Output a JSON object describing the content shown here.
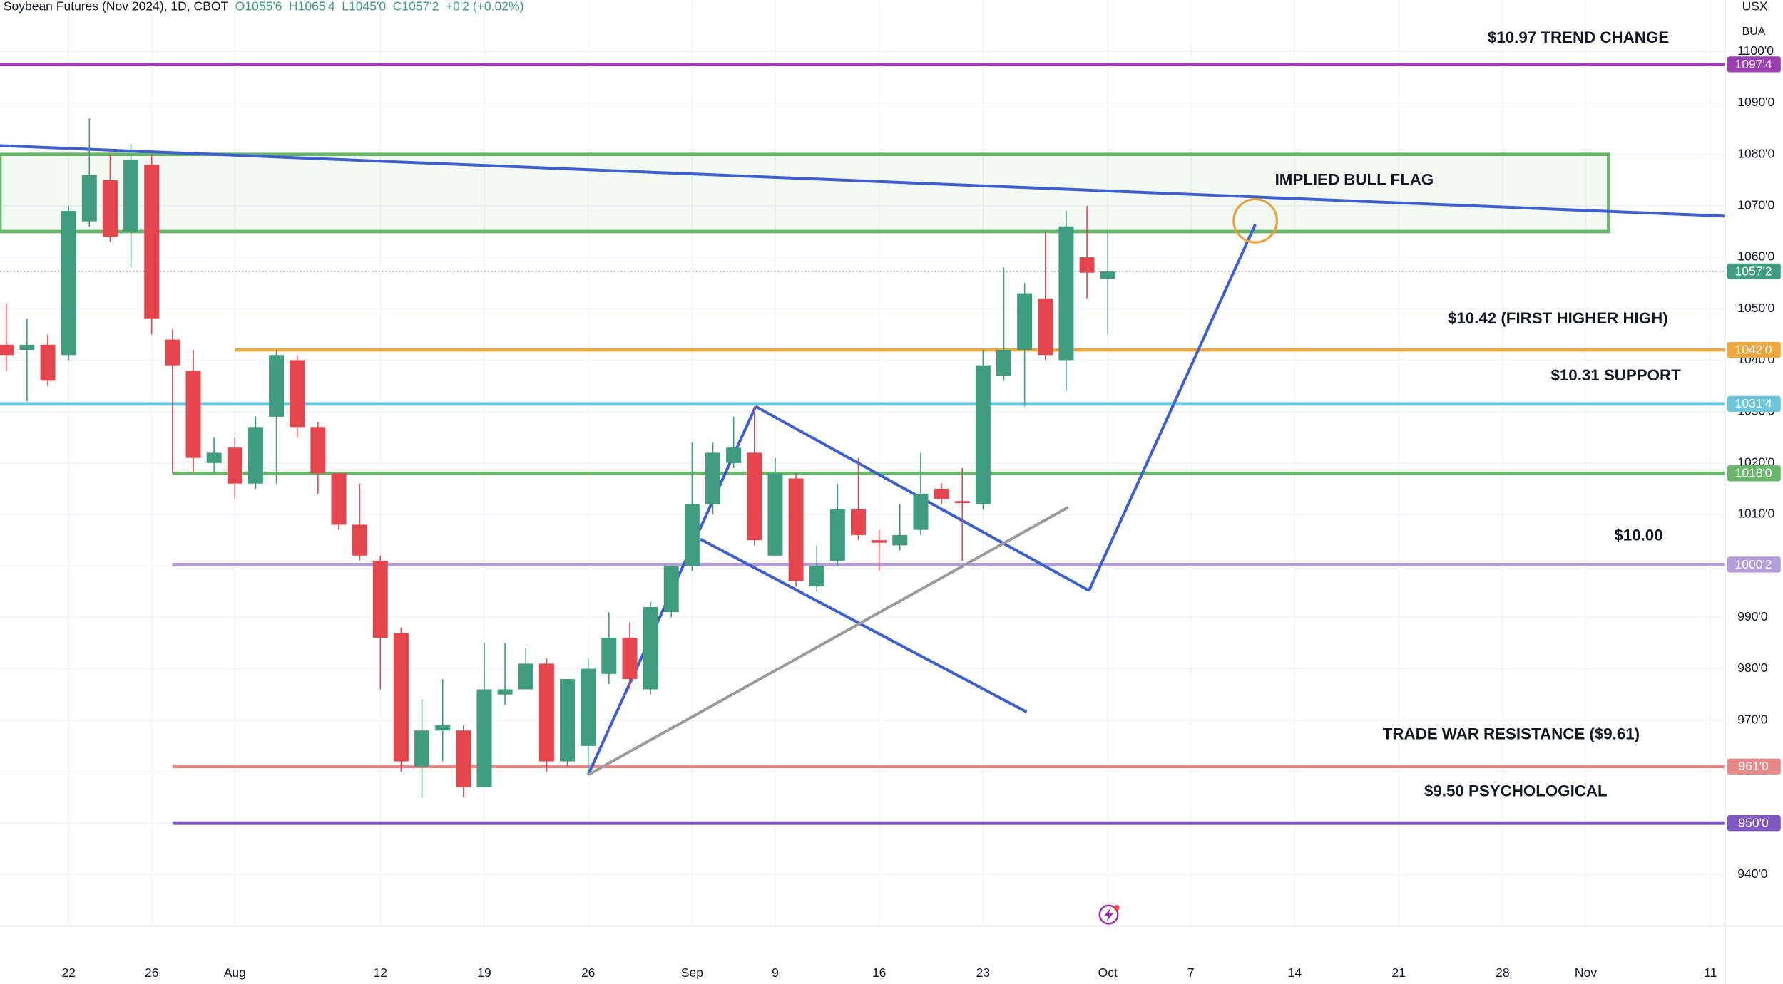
{
  "chart_data": {
    "type": "candlestick",
    "title": "Soybean Futures (Nov 2024), 1D, CBOT",
    "ohlc_labels": [
      "O1055'6",
      "H1065'4",
      "L1045'0",
      "C1057'2",
      "+0'2 (+0.02%)"
    ],
    "currency": "USX",
    "unit": "BUA",
    "x": [
      -3,
      -2,
      -1,
      0,
      1,
      2,
      3,
      4,
      5,
      6,
      7,
      8,
      9,
      10,
      11,
      12,
      13,
      14,
      15,
      16,
      17,
      18,
      19,
      20,
      21,
      22,
      23,
      24,
      25,
      26,
      27,
      28,
      29,
      30,
      31,
      32,
      33,
      34,
      35,
      36,
      37,
      38,
      39,
      40,
      41,
      42,
      43,
      44,
      45,
      46,
      47,
      48,
      49,
      50
    ],
    "open": [
      1043,
      1042,
      1043,
      1041,
      1067,
      1075,
      1065,
      1078,
      1044,
      1038,
      1020,
      1023,
      1016,
      1029,
      1040,
      1027,
      1018,
      1008,
      1001,
      987,
      961,
      968,
      968,
      957,
      975,
      976,
      981,
      962,
      965,
      979,
      986,
      976,
      991,
      1000,
      1012,
      1020,
      1022,
      1002,
      1017,
      996,
      1001,
      1011,
      1005,
      1004,
      1007,
      1015,
      1012.6,
      1012,
      1037,
      1042,
      1052,
      1040,
      1060,
      1055.75
    ],
    "high": [
      1051,
      1048,
      1045,
      1070,
      1087,
      1080,
      1082,
      1080,
      1046,
      1042,
      1025,
      1025,
      1029,
      1042,
      1041,
      1028,
      1018,
      1016,
      1002,
      988,
      974,
      978,
      969,
      985,
      985,
      984,
      982,
      978,
      982,
      991,
      989,
      993,
      1000,
      1024,
      1024,
      1029,
      1031,
      1021,
      1018,
      1004,
      1016,
      1021,
      1007,
      1012,
      1022,
      1016,
      1019,
      1042,
      1058,
      1055,
      1065,
      1069,
      1070,
      1065.5
    ],
    "low": [
      1038,
      1032,
      1035,
      1040,
      1066,
      1063,
      1058,
      1045,
      1018,
      1018,
      1018,
      1013,
      1015,
      1016,
      1025,
      1014,
      1007,
      1001,
      976,
      960,
      955,
      962,
      955,
      957,
      973,
      976,
      960,
      961,
      960,
      977,
      976,
      975,
      990,
      999,
      1010,
      1019,
      1004,
      1002,
      996,
      995,
      1000,
      1005,
      999,
      1003,
      1006,
      1012,
      1001,
      1011,
      1036,
      1031,
      1040,
      1034,
      1052,
      1045
    ],
    "close": [
      1041,
      1043,
      1036,
      1069,
      1076,
      1064,
      1079,
      1048,
      1039,
      1021,
      1022,
      1016,
      1027,
      1041,
      1027,
      1018,
      1008,
      1002,
      986,
      962,
      968,
      969,
      957,
      976,
      976,
      981,
      962,
      978,
      980,
      986,
      978,
      992,
      1000,
      1012,
      1022,
      1023,
      1005,
      1018,
      997,
      1000,
      1011,
      1006,
      1004.5,
      1006,
      1014,
      1013,
      1012.2,
      1039,
      1042,
      1053,
      1041,
      1066,
      1057,
      1057.25
    ],
    "up_color": "#3f9c7f",
    "down_color": "#e5464e",
    "xlim": [
      -3.3,
      79.7
    ],
    "xticks": [
      {
        "value": 0,
        "label": "22"
      },
      {
        "value": 4,
        "label": "26"
      },
      {
        "value": 8,
        "label": "Aug"
      },
      {
        "value": 15,
        "label": "12"
      },
      {
        "value": 20,
        "label": "19"
      },
      {
        "value": 25,
        "label": "26"
      },
      {
        "value": 30,
        "label": "Sep"
      },
      {
        "value": 34,
        "label": "9"
      },
      {
        "value": 39,
        "label": "16"
      },
      {
        "value": 44,
        "label": "23"
      },
      {
        "value": 50,
        "label": "Oct"
      },
      {
        "value": 54,
        "label": "7"
      },
      {
        "value": 59,
        "label": "14"
      },
      {
        "value": 64,
        "label": "21"
      },
      {
        "value": 69,
        "label": "28"
      },
      {
        "value": 73,
        "label": "Nov"
      },
      {
        "value": 79,
        "label": "11"
      }
    ],
    "ylim": [
      930,
      1110
    ],
    "yticks": [
      {
        "value": 940,
        "label": "940'0"
      },
      {
        "value": 950,
        "label": "950'0"
      },
      {
        "value": 960,
        "label": "960'0"
      },
      {
        "value": 970,
        "label": "970'0"
      },
      {
        "value": 980,
        "label": "980'0"
      },
      {
        "value": 990,
        "label": "990'0"
      },
      {
        "value": 1000,
        "label": "1000'0"
      },
      {
        "value": 1010,
        "label": "1010'0"
      },
      {
        "value": 1020,
        "label": "1020'0"
      },
      {
        "value": 1030,
        "label": "1030'0"
      },
      {
        "value": 1040,
        "label": "1040'0"
      },
      {
        "value": 1050,
        "label": "1050'0"
      },
      {
        "value": 1060,
        "label": "1060'0"
      },
      {
        "value": 1070,
        "label": "1070'0"
      },
      {
        "value": 1080,
        "label": "1080'0"
      },
      {
        "value": 1090,
        "label": "1090'0"
      },
      {
        "value": 1100,
        "label": "1100'0"
      }
    ],
    "grid": true,
    "last_price": {
      "value": 1057.25,
      "label": "1057'2",
      "color": "#3f9c7f"
    },
    "levels": [
      {
        "value": 1097.5,
        "label": "1097'4",
        "color": "#9c3fb3"
      },
      {
        "value": 1042,
        "label": "1042'0",
        "color": "#f0a73f",
        "from": 8
      },
      {
        "value": 1031.5,
        "label": "1031'4",
        "color": "#6ec6dc"
      },
      {
        "value": 1018,
        "label": "1018'0",
        "color": "#6ab66a",
        "from": 5
      },
      {
        "value": 1000.25,
        "label": "1000'2",
        "color": "#b39ddb",
        "from": 5
      },
      {
        "value": 961,
        "label": "961'0",
        "color": "#e88a8a",
        "from": 5
      },
      {
        "value": 950,
        "label": "950'0",
        "color": "#7e57c2",
        "from": 5
      }
    ],
    "zone": {
      "low": 1065,
      "high": 1080,
      "to": 74.1,
      "color": "#6ab66a"
    },
    "trendlines": [
      {
        "color": "#3f5fcf",
        "points": [
          [
            -3.3,
            1081.7
          ],
          [
            79.7,
            1068
          ]
        ]
      },
      {
        "color": "#3f5fcf",
        "points": [
          [
            25,
            959.4
          ],
          [
            33.06,
            1031
          ]
        ]
      },
      {
        "color": "#3f5fcf",
        "points": [
          [
            33.06,
            1031
          ],
          [
            49.1,
            995.2
          ]
        ]
      },
      {
        "color": "#3f5fcf",
        "points": [
          [
            30.4,
            1005.2
          ],
          [
            46.1,
            971.6
          ]
        ]
      },
      {
        "color": "#3f5fcf",
        "points": [
          [
            49.1,
            995.2
          ],
          [
            57.1,
            1066.4
          ]
        ]
      },
      {
        "color": "#9a9a9a",
        "points": [
          [
            25,
            959.4
          ],
          [
            48.1,
            1011.4
          ]
        ]
      }
    ],
    "circle": {
      "center": [
        57.1,
        1067.1
      ],
      "color": "#e8a13c"
    },
    "annotations": [
      "$10.97 TREND CHANGE",
      "IMPLIED BULL FLAG",
      "$10.42 (FIRST HIGHER HIGH)",
      "$10.31 SUPPORT",
      "$10.00",
      "TRADE WAR RESISTANCE ($9.61)",
      "$9.50 PSYCHOLOGICAL"
    ]
  }
}
